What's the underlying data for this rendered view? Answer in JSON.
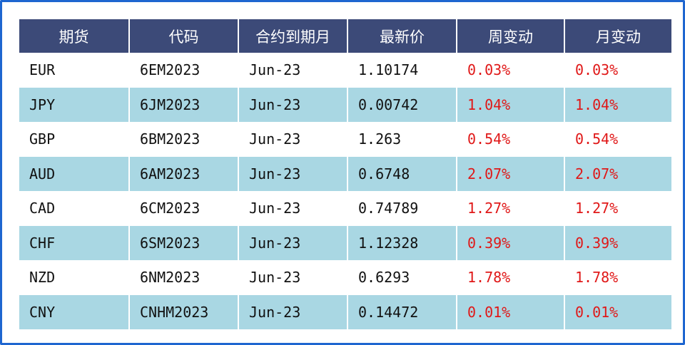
{
  "table": {
    "headers": [
      "期货",
      "代码",
      "合约到期月",
      "最新价",
      "周变动",
      "月变动"
    ],
    "rows": [
      [
        "EUR",
        "6EM2023",
        "Jun-23",
        "1.10174",
        "0.03%",
        "0.03%"
      ],
      [
        "JPY",
        "6JM2023",
        "Jun-23",
        "0.00742",
        "1.04%",
        "1.04%"
      ],
      [
        "GBP",
        "6BM2023",
        "Jun-23",
        "1.263",
        "0.54%",
        "0.54%"
      ],
      [
        "AUD",
        "6AM2023",
        "Jun-23",
        "0.6748",
        "2.07%",
        "2.07%"
      ],
      [
        "CAD",
        "6CM2023",
        "Jun-23",
        "0.74789",
        "1.27%",
        "1.27%"
      ],
      [
        "CHF",
        "6SM2023",
        "Jun-23",
        "1.12328",
        "0.39%",
        "0.39%"
      ],
      [
        "NZD",
        "6NM2023",
        "Jun-23",
        "0.6293",
        "1.78%",
        "1.78%"
      ],
      [
        "CNY",
        "CNHM2023",
        "Jun-23",
        "0.14472",
        "0.01%",
        "0.01%"
      ]
    ]
  },
  "colors": {
    "header_bg": "#3c4a78",
    "stripe_bg": "#a9d7e3",
    "change_text": "#e01818",
    "frame_border": "#1e66d0"
  }
}
